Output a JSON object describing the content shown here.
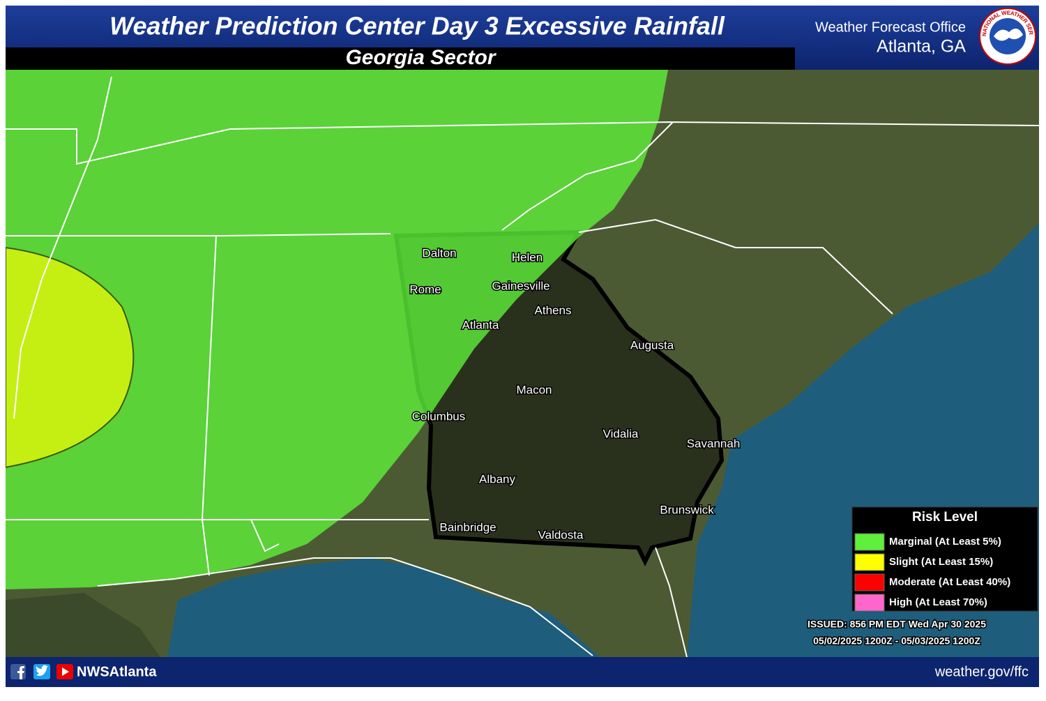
{
  "header": {
    "title": "Weather Prediction Center Day 3 Excessive Rainfall",
    "subtitle": "Georgia Sector",
    "office": "Weather Forecast Office",
    "location": "Atlanta, GA",
    "logo_text": "NATIONAL WEATHER SERVICE"
  },
  "map": {
    "cities": [
      "Dalton",
      "Helen",
      "Rome",
      "Gainesville",
      "Athens",
      "Atlanta",
      "Augusta",
      "Macon",
      "Columbus",
      "Vidalia",
      "Savannah",
      "Albany",
      "Brunswick",
      "Bainbridge",
      "Valdosta"
    ]
  },
  "legend": {
    "title": "Risk Level",
    "items": [
      {
        "label": "Marginal (At Least 5%)",
        "color": "#5ef03a"
      },
      {
        "label": "Slight (At Least 15%)",
        "color": "#ffff00"
      },
      {
        "label": "Moderate (At Least 40%)",
        "color": "#ff0000"
      },
      {
        "label": "High (At Least 70%)",
        "color": "#ff66cc"
      }
    ]
  },
  "issued": "ISSUED: 856 PM EDT Wed Apr 30 2025",
  "valid": "05/02/2025 1200Z - 05/03/2025 1200Z",
  "footer": {
    "handle": "NWSAtlanta",
    "url": "weather.gov/ffc"
  }
}
